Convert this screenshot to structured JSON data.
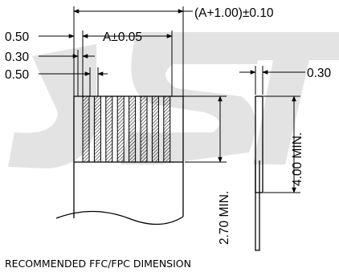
{
  "dimensions": {
    "overall_width": "(A+1.00)±0.10",
    "pitch": "A±0.05",
    "conductor_pitch": "0.50",
    "conductor_width": "0.30",
    "edge_offset": "0.50",
    "thickness": "0.30",
    "stiffener_length": "4.00 MIN.",
    "exposed_length": "2.70 MIN."
  },
  "caption": "RECOMMENDED FFC/FPC DIMENSION",
  "watermark_text": "JST",
  "colors": {
    "line": "#000000",
    "watermark": "#e3e3e3",
    "background": "#ffffff"
  },
  "conductor_count": 8
}
